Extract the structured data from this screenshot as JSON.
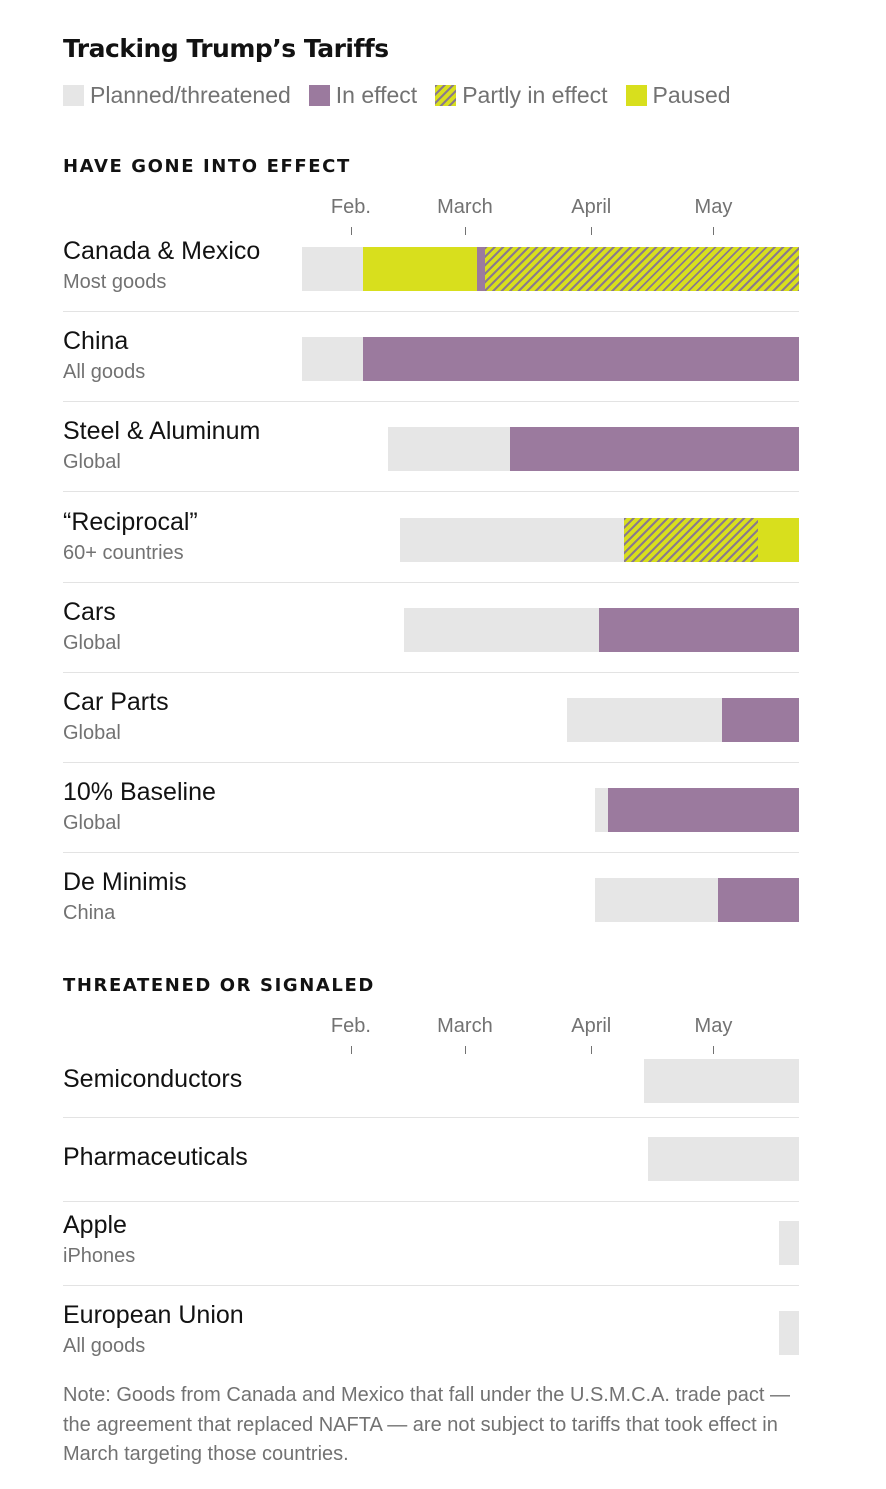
{
  "title": "Tracking Trump’s Tariffs",
  "colors": {
    "planned": "#e6e6e6",
    "in_effect": "#9b7a9e",
    "partly_stripe": "#8a7a8c",
    "paused": "#d8df1d"
  },
  "legend": [
    {
      "key": "planned",
      "label": "Planned/threatened"
    },
    {
      "key": "in_effect",
      "label": "In effect"
    },
    {
      "key": "partly",
      "label": "Partly in effect"
    },
    {
      "key": "paused",
      "label": "Paused"
    }
  ],
  "note": "Note: Goods from Canada and Mexico that fall under the U.S.M.C.A. trade pact — the agreement that replaced NAFTA — are not subject to tariffs that took effect in March targeting those countries.",
  "chart_data": {
    "type": "bar",
    "orientation": "horizontal",
    "x_axis": {
      "type": "date",
      "range": [
        "2025-01-20",
        "2025-05-22"
      ],
      "ticks": [
        {
          "label": "Feb.",
          "date": "2025-02-01"
        },
        {
          "label": "March",
          "date": "2025-03-01"
        },
        {
          "label": "April",
          "date": "2025-04-01"
        },
        {
          "label": "May",
          "date": "2025-05-01"
        }
      ]
    },
    "legend_placement": "top",
    "grid": false,
    "sections": [
      {
        "heading": "HAVE GONE INTO EFFECT",
        "rows": [
          {
            "label": "Canada & Mexico",
            "sublabel": "Most goods",
            "segments": [
              {
                "status": "planned",
                "start": "2025-01-20",
                "end": "2025-02-04"
              },
              {
                "status": "paused",
                "start": "2025-02-04",
                "end": "2025-03-04"
              },
              {
                "status": "in_effect",
                "start": "2025-03-04",
                "end": "2025-03-06"
              },
              {
                "status": "partly",
                "start": "2025-03-06",
                "end": "2025-05-22"
              }
            ]
          },
          {
            "label": "China",
            "sublabel": "All goods",
            "segments": [
              {
                "status": "planned",
                "start": "2025-01-20",
                "end": "2025-02-04"
              },
              {
                "status": "in_effect",
                "start": "2025-02-04",
                "end": "2025-05-22"
              }
            ]
          },
          {
            "label": "Steel & Aluminum",
            "sublabel": "Global",
            "segments": [
              {
                "status": "planned",
                "start": "2025-02-10",
                "end": "2025-03-12"
              },
              {
                "status": "in_effect",
                "start": "2025-03-12",
                "end": "2025-05-22"
              }
            ]
          },
          {
            "label": "“Reciprocal”",
            "sublabel": "60+ countries",
            "segments": [
              {
                "status": "planned",
                "start": "2025-02-13",
                "end": "2025-04-09"
              },
              {
                "status": "partly",
                "start": "2025-04-09",
                "end": "2025-05-12"
              },
              {
                "status": "paused",
                "start": "2025-05-12",
                "end": "2025-05-22"
              }
            ]
          },
          {
            "label": "Cars",
            "sublabel": "Global",
            "segments": [
              {
                "status": "planned",
                "start": "2025-02-14",
                "end": "2025-04-03"
              },
              {
                "status": "in_effect",
                "start": "2025-04-03",
                "end": "2025-05-22"
              }
            ]
          },
          {
            "label": "Car Parts",
            "sublabel": "Global",
            "segments": [
              {
                "status": "planned",
                "start": "2025-03-26",
                "end": "2025-05-03"
              },
              {
                "status": "in_effect",
                "start": "2025-05-03",
                "end": "2025-05-22"
              }
            ]
          },
          {
            "label": "10% Baseline",
            "sublabel": "Global",
            "segments": [
              {
                "status": "planned",
                "start": "2025-04-02",
                "end": "2025-04-05"
              },
              {
                "status": "in_effect",
                "start": "2025-04-05",
                "end": "2025-05-22"
              }
            ]
          },
          {
            "label": "De Minimis",
            "sublabel": "China",
            "segments": [
              {
                "status": "planned",
                "start": "2025-04-02",
                "end": "2025-05-02"
              },
              {
                "status": "in_effect",
                "start": "2025-05-02",
                "end": "2025-05-22"
              }
            ]
          }
        ]
      },
      {
        "heading": "THREATENED OR SIGNALED",
        "rows": [
          {
            "label": "Semiconductors",
            "sublabel": "",
            "segments": [
              {
                "status": "planned",
                "start": "2025-04-14",
                "end": "2025-05-22"
              }
            ]
          },
          {
            "label": "Pharmaceuticals",
            "sublabel": "",
            "segments": [
              {
                "status": "planned",
                "start": "2025-04-15",
                "end": "2025-05-22"
              }
            ]
          },
          {
            "label": "Apple",
            "sublabel": "iPhones",
            "segments": [
              {
                "status": "planned",
                "start": "2025-05-17",
                "end": "2025-05-22"
              }
            ]
          },
          {
            "label": "European Union",
            "sublabel": "All goods",
            "segments": [
              {
                "status": "planned",
                "start": "2025-05-17",
                "end": "2025-05-22"
              }
            ]
          }
        ]
      }
    ]
  }
}
